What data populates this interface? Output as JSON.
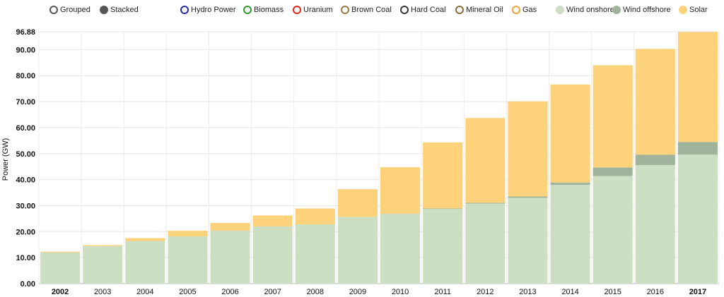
{
  "modes": [
    {
      "label": "Grouped",
      "filled": false
    },
    {
      "label": "Stacked",
      "filled": true
    }
  ],
  "legend": [
    {
      "label": "Hydro Power",
      "color": "#2a2aa8",
      "filled": false
    },
    {
      "label": "Biomass",
      "color": "#2e9a2e",
      "filled": false
    },
    {
      "label": "Uranium",
      "color": "#e0261b",
      "filled": false
    },
    {
      "label": "Brown Coal",
      "color": "#9a7a4a",
      "filled": false
    },
    {
      "label": "Hard Coal",
      "color": "#333333",
      "filled": false
    },
    {
      "label": "Mineral Oil",
      "color": "#8b6a3a",
      "filled": false
    },
    {
      "label": "Gas",
      "color": "#e8a33a",
      "filled": false
    },
    {
      "label": "Wind onshore",
      "color": "#cddfc3",
      "filled": true
    },
    {
      "label": "Wind offshore",
      "color": "#9fb49a",
      "filled": true
    },
    {
      "label": "Solar",
      "color": "#fdd27a",
      "filled": true
    }
  ],
  "chart_data": {
    "type": "bar",
    "stacked": true,
    "categories": [
      "2002",
      "2003",
      "2004",
      "2005",
      "2006",
      "2007",
      "2008",
      "2009",
      "2010",
      "2011",
      "2012",
      "2013",
      "2014",
      "2015",
      "2016",
      "2017"
    ],
    "bold_categories": [
      "2002",
      "2017"
    ],
    "ylabel": "Power (GW)",
    "ylim": [
      0,
      96.88
    ],
    "yticks": [
      "0.00",
      "10.00",
      "20.00",
      "30.00",
      "40.00",
      "50.00",
      "60.00",
      "70.00",
      "80.00",
      "90.00",
      "96.88"
    ],
    "grid": true,
    "series": [
      {
        "name": "Wind onshore",
        "color": "#cddfc3",
        "values": [
          12.0,
          14.4,
          16.4,
          18.2,
          20.4,
          22.0,
          22.8,
          25.7,
          26.8,
          28.7,
          30.8,
          33.0,
          38.0,
          41.4,
          45.6,
          49.6
        ]
      },
      {
        "name": "Wind offshore",
        "color": "#9fb49a",
        "values": [
          0.0,
          0.0,
          0.0,
          0.0,
          0.0,
          0.0,
          0.0,
          0.0,
          0.1,
          0.2,
          0.3,
          0.5,
          0.9,
          3.3,
          4.0,
          4.9
        ]
      },
      {
        "name": "Solar",
        "color": "#fdd27a",
        "values": [
          0.3,
          0.4,
          1.1,
          2.1,
          2.9,
          4.2,
          6.1,
          10.6,
          17.9,
          25.4,
          32.6,
          36.6,
          37.7,
          39.3,
          40.7,
          42.3
        ]
      }
    ]
  }
}
